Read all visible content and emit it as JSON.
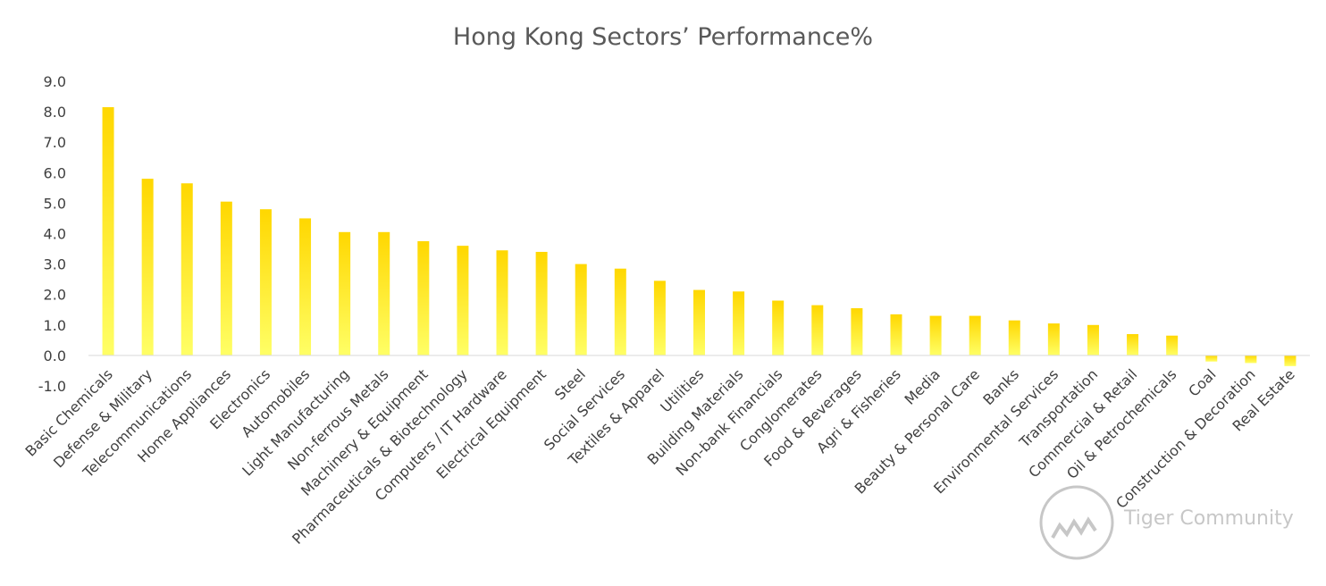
{
  "chart_data": {
    "type": "bar",
    "title": "Hong Kong Sectors’ Performance%",
    "xlabel": "",
    "ylabel": "",
    "ylim": [
      -1.0,
      9.0
    ],
    "yticks": [
      "9.0",
      "8.0",
      "7.0",
      "6.0",
      "5.0",
      "4.0",
      "3.0",
      "2.0",
      "1.0",
      "0.0",
      "-1.0"
    ],
    "grid": false,
    "legend": "none",
    "bar_color_top": "#ffd700",
    "bar_color_bottom": "#ffff66",
    "categories": [
      "Basic Chemicals",
      "Defense & Military",
      "Telecommunications",
      "Home Appliances",
      "Electronics",
      "Automobiles",
      "Light Manufacturing",
      "Non-ferrous Metals",
      "Machinery & Equipment",
      "Pharmaceuticals & Biotechnology",
      "Computers / IT Hardware",
      "Electrical Equipment",
      "Steel",
      "Social Services",
      "Textiles & Apparel",
      "Utilities",
      "Building Materials",
      "Non-bank Financials",
      "Conglomerates",
      "Food & Beverages",
      "Agri & Fisheries",
      "Media",
      "Beauty & Personal Care",
      "Banks",
      "Environmental Services",
      "Transportation",
      "Commercial & Retail",
      "Oil & Petrochemicals",
      "Coal",
      "Construction & Decoration",
      "Real Estate"
    ],
    "values": [
      8.15,
      5.8,
      5.65,
      5.05,
      4.8,
      4.5,
      4.05,
      4.05,
      3.75,
      3.6,
      3.45,
      3.4,
      3.0,
      2.85,
      2.45,
      2.15,
      2.1,
      1.8,
      1.65,
      1.55,
      1.35,
      1.3,
      1.3,
      1.15,
      1.05,
      1.0,
      0.7,
      0.65,
      -0.2,
      -0.25,
      -0.35
    ]
  },
  "watermark": {
    "text": "Tiger Community",
    "icon": "tiger-community-logo-icon"
  }
}
